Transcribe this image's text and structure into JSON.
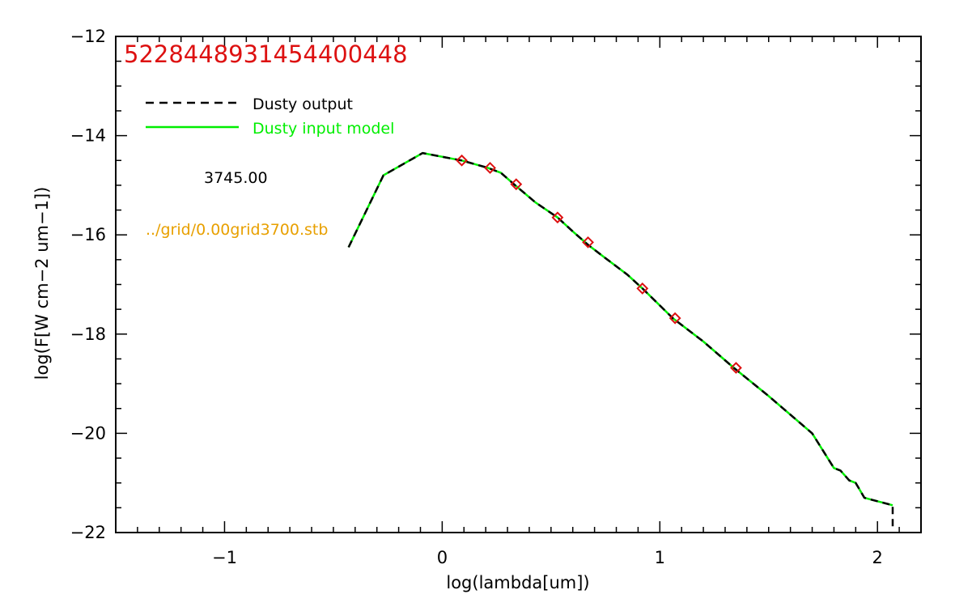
{
  "chart_data": {
    "type": "line",
    "title": "5228448931454400448",
    "xlabel": "log(lambda[um])",
    "ylabel": "log(F[W cm−2 um−1])",
    "xlim": [
      -1.5,
      2.2
    ],
    "ylim": [
      -22,
      -12
    ],
    "x_ticks": [
      {
        "value": -1,
        "label": "−1"
      },
      {
        "value": 0,
        "label": "0"
      },
      {
        "value": 1,
        "label": "1"
      },
      {
        "value": 2,
        "label": "2"
      }
    ],
    "y_ticks": [
      {
        "value": -12,
        "label": "−12"
      },
      {
        "value": -14,
        "label": "−14"
      },
      {
        "value": -16,
        "label": "−16"
      },
      {
        "value": -18,
        "label": "−18"
      },
      {
        "value": -20,
        "label": "−20"
      },
      {
        "value": -22,
        "label": "−22"
      }
    ],
    "legend": {
      "placement": "top-left",
      "entries": [
        {
          "label": "Dusty output",
          "color": "#000000",
          "dash": "dashed"
        },
        {
          "label": "Dusty input model",
          "color": "#00ee00",
          "dash": "solid"
        }
      ]
    },
    "annotations": [
      {
        "text": "3745.00",
        "color": "#000000"
      },
      {
        "text": "../grid/0.00grid3700.stb",
        "color": "#e8a000"
      }
    ],
    "series": [
      {
        "name": "Dusty input model",
        "color": "#00ee00",
        "style": "solid",
        "x": [
          -0.43,
          -0.27,
          -0.09,
          0.09,
          0.21,
          0.27,
          0.33,
          0.43,
          0.53,
          0.6,
          0.67,
          0.75,
          0.85,
          0.92,
          1.06,
          1.2,
          1.34,
          1.5,
          1.7,
          1.8,
          1.83,
          1.87,
          1.9,
          1.94,
          2.07
        ],
        "y": [
          -16.25,
          -14.8,
          -14.35,
          -14.5,
          -14.65,
          -14.75,
          -14.98,
          -15.35,
          -15.65,
          -15.93,
          -16.2,
          -16.47,
          -16.8,
          -17.08,
          -17.68,
          -18.15,
          -18.68,
          -19.25,
          -20.0,
          -20.7,
          -20.75,
          -20.95,
          -21.0,
          -21.3,
          -21.45
        ]
      },
      {
        "name": "Dusty output",
        "color": "#000000",
        "style": "dashed",
        "x": [
          -0.43,
          -0.27,
          -0.09,
          0.09,
          0.21,
          0.27,
          0.33,
          0.43,
          0.53,
          0.6,
          0.67,
          0.75,
          0.85,
          0.92,
          1.06,
          1.2,
          1.34,
          1.5,
          1.7,
          1.8,
          1.83,
          1.87,
          1.9,
          1.94,
          2.07,
          2.07
        ],
        "y": [
          -16.25,
          -14.8,
          -14.35,
          -14.5,
          -14.65,
          -14.75,
          -14.98,
          -15.35,
          -15.65,
          -15.93,
          -16.2,
          -16.47,
          -16.8,
          -17.08,
          -17.68,
          -18.15,
          -18.68,
          -19.25,
          -20.0,
          -20.7,
          -20.75,
          -20.95,
          -21.0,
          -21.3,
          -21.45,
          -21.95
        ]
      }
    ],
    "markers": {
      "shape": "diamond",
      "color": "#dd1111",
      "x": [
        0.09,
        0.22,
        0.34,
        0.53,
        0.67,
        0.92,
        1.07,
        1.35
      ],
      "y": [
        -14.5,
        -14.65,
        -14.98,
        -15.65,
        -16.15,
        -17.08,
        -17.68,
        -18.68
      ]
    }
  }
}
